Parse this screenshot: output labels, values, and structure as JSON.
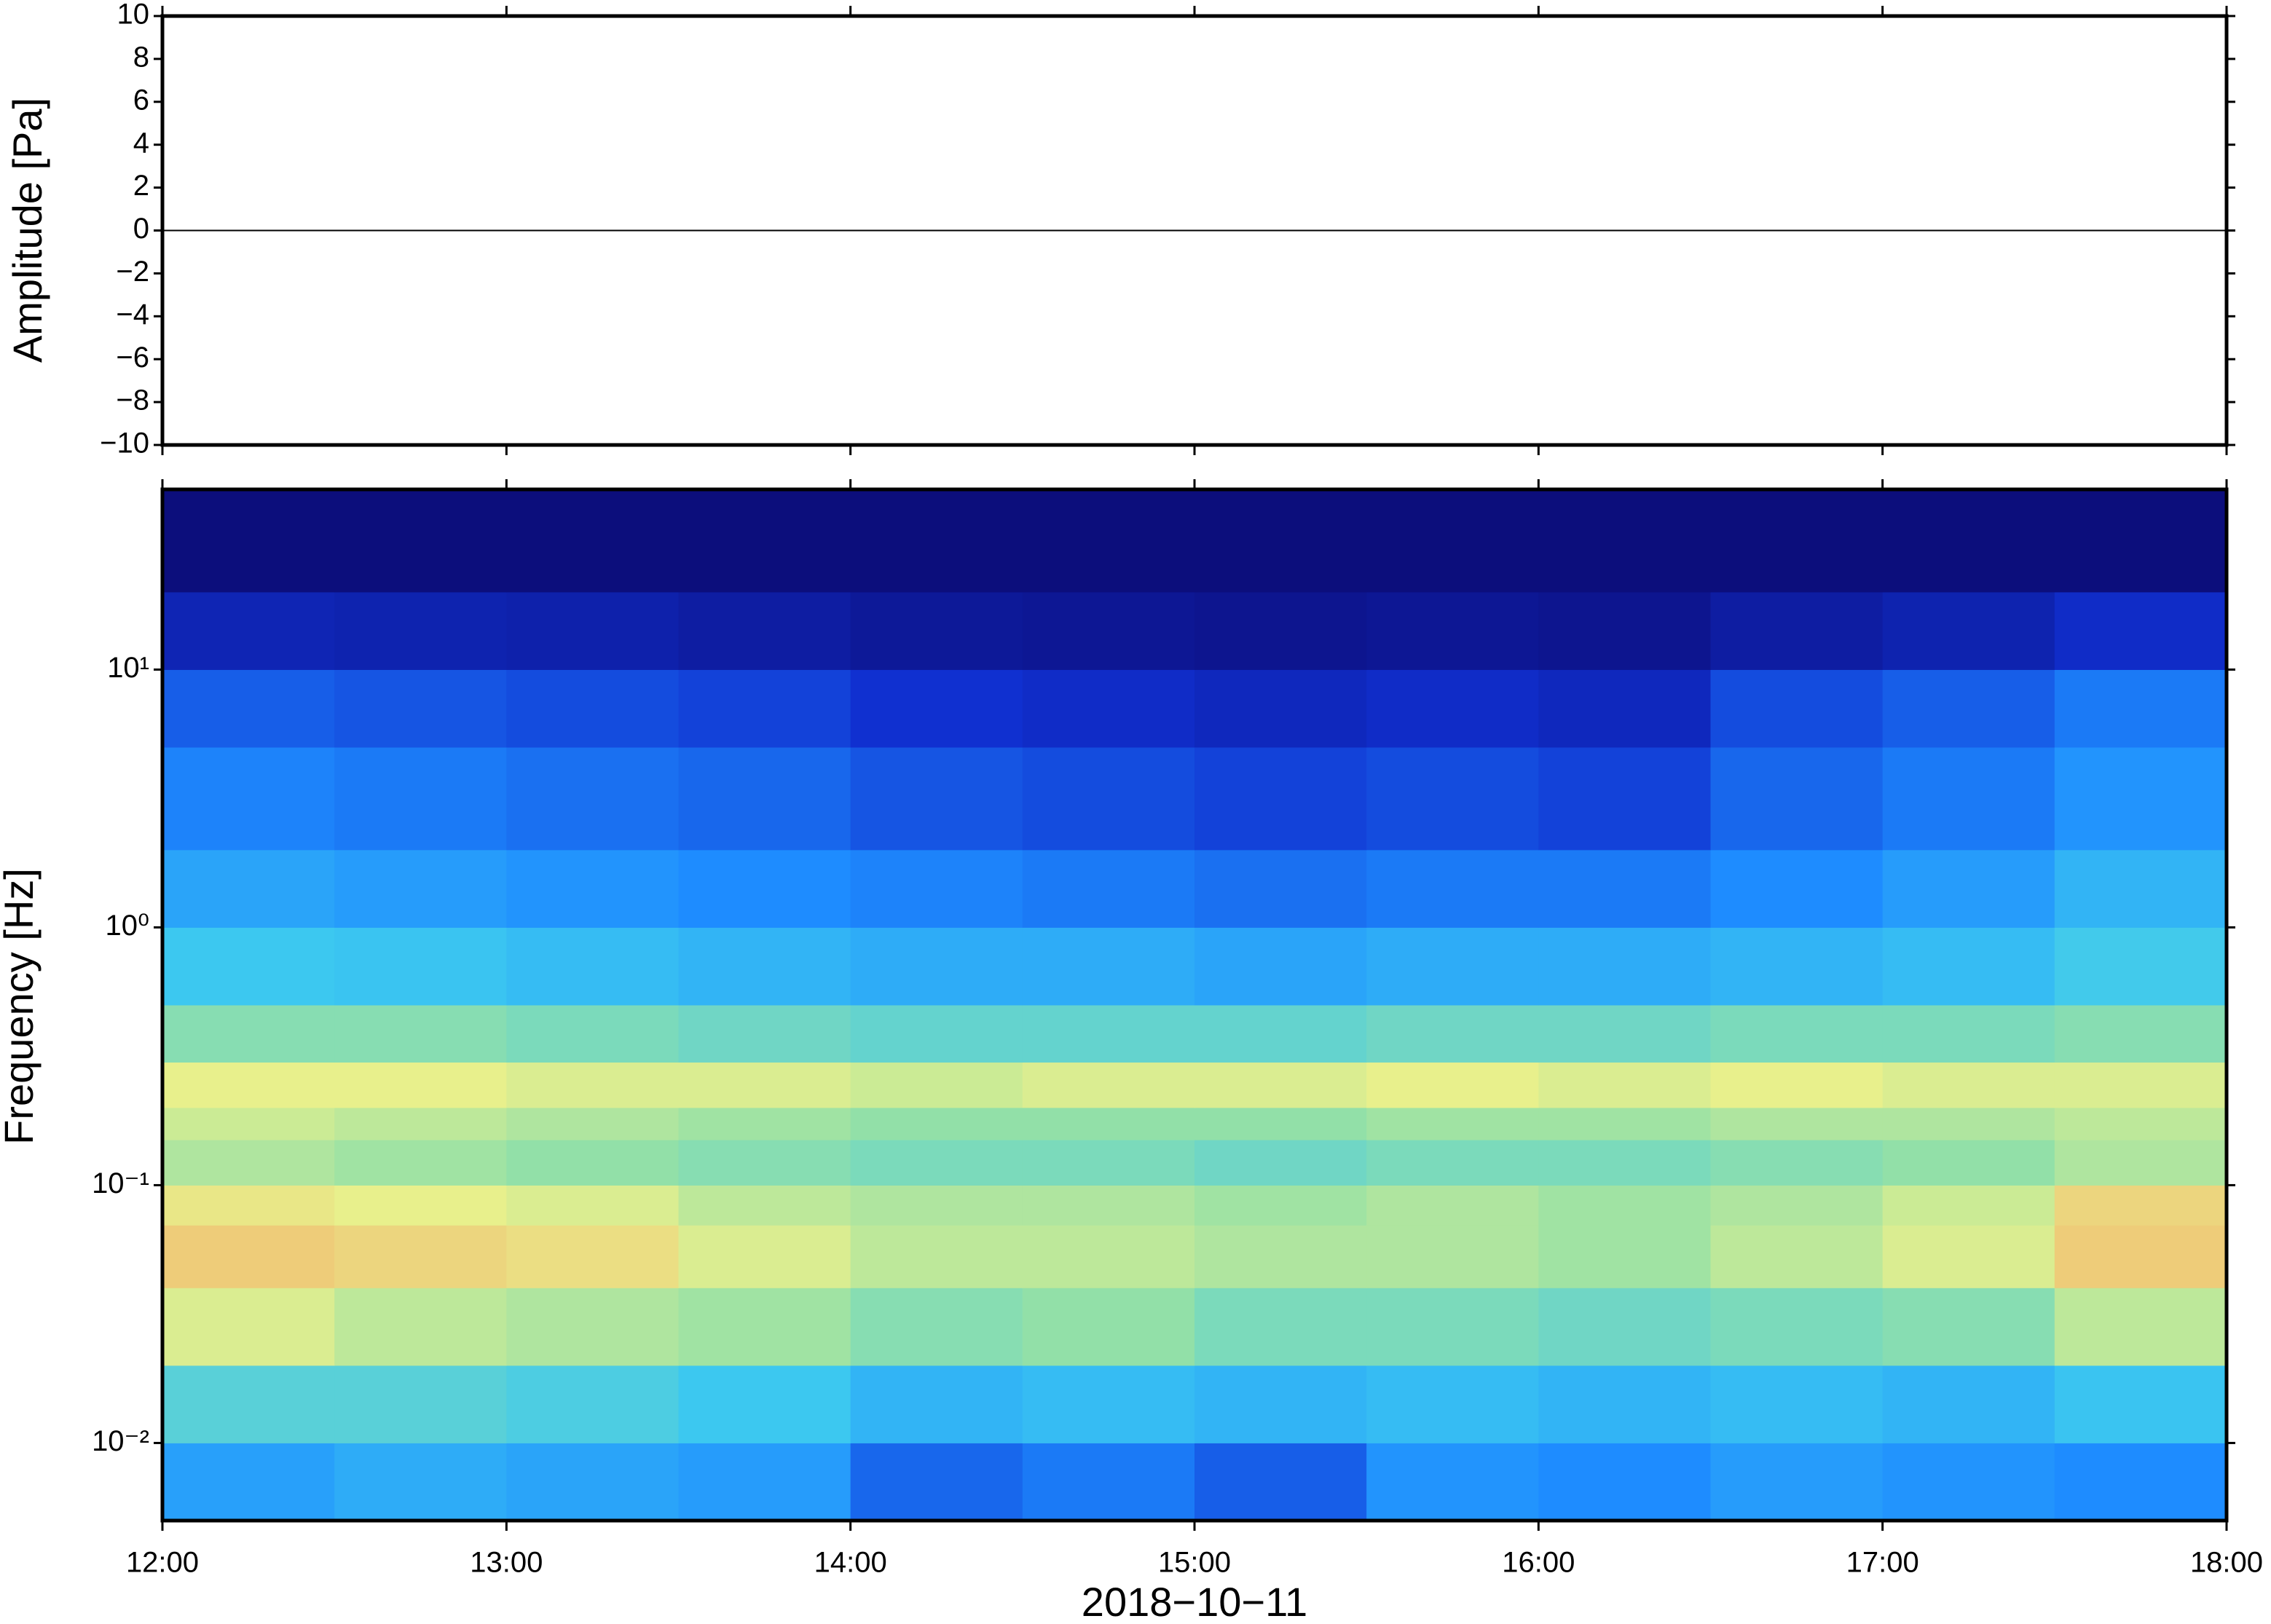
{
  "chart_data": [
    {
      "type": "line",
      "ylabel": "Amplitude [Pa]",
      "x": [
        "12:00",
        "13:00",
        "14:00",
        "15:00",
        "16:00",
        "17:00",
        "18:00"
      ],
      "series": [
        {
          "name": "Amplitude",
          "color": "#000000",
          "values": [
            0,
            0,
            0,
            0,
            0,
            0,
            0
          ]
        }
      ],
      "xlim": [
        "12:00",
        "18:00"
      ],
      "xticks": [
        "12:00",
        "13:00",
        "14:00",
        "15:00",
        "16:00",
        "17:00",
        "18:00"
      ],
      "ylim": [
        -10,
        10
      ],
      "yticks": [
        {
          "value": -10,
          "label": "−10"
        },
        {
          "value": -8,
          "label": "−8"
        },
        {
          "value": -6,
          "label": "−6"
        },
        {
          "value": -4,
          "label": "−4"
        },
        {
          "value": -2,
          "label": "−2"
        },
        0,
        2,
        4,
        6,
        8,
        10
      ]
    },
    {
      "type": "heatmap",
      "ylabel": "Frequency [Hz]",
      "xlabel": "2018−10−11",
      "log_y": true,
      "x": [
        "12:00",
        "12:30",
        "13:00",
        "13:30",
        "14:00",
        "14:30",
        "15:00",
        "15:30",
        "16:00",
        "16:30",
        "17:00",
        "17:30",
        "18:00"
      ],
      "y": [
        0.005,
        0.01,
        0.02,
        0.04,
        0.07,
        0.1,
        0.15,
        0.2,
        0.3,
        0.5,
        1,
        2,
        5,
        10,
        20,
        50
      ],
      "values": [
        [
          0.45,
          0.48,
          0.46,
          0.44,
          0.32,
          0.36,
          0.3,
          0.42,
          0.4,
          0.44,
          0.42,
          0.4
        ],
        [
          0.6,
          0.6,
          0.58,
          0.55,
          0.5,
          0.52,
          0.5,
          0.52,
          0.5,
          0.52,
          0.5,
          0.54
        ],
        [
          0.8,
          0.76,
          0.74,
          0.72,
          0.68,
          0.7,
          0.66,
          0.66,
          0.64,
          0.66,
          0.68,
          0.76
        ],
        [
          0.9,
          0.88,
          0.86,
          0.8,
          0.76,
          0.76,
          0.74,
          0.74,
          0.72,
          0.76,
          0.8,
          0.9
        ],
        [
          0.84,
          0.82,
          0.8,
          0.76,
          0.74,
          0.74,
          0.72,
          0.74,
          0.72,
          0.74,
          0.78,
          0.88
        ],
        [
          0.74,
          0.72,
          0.7,
          0.68,
          0.66,
          0.66,
          0.64,
          0.66,
          0.66,
          0.68,
          0.7,
          0.74
        ],
        [
          0.78,
          0.76,
          0.74,
          0.72,
          0.7,
          0.7,
          0.7,
          0.72,
          0.72,
          0.74,
          0.74,
          0.76
        ],
        [
          0.82,
          0.82,
          0.8,
          0.8,
          0.78,
          0.8,
          0.8,
          0.82,
          0.8,
          0.82,
          0.8,
          0.8
        ],
        [
          0.68,
          0.68,
          0.66,
          0.64,
          0.62,
          0.62,
          0.62,
          0.64,
          0.64,
          0.66,
          0.66,
          0.68
        ],
        [
          0.55,
          0.54,
          0.52,
          0.5,
          0.48,
          0.48,
          0.46,
          0.48,
          0.48,
          0.5,
          0.52,
          0.56
        ],
        [
          0.46,
          0.44,
          0.42,
          0.4,
          0.38,
          0.36,
          0.34,
          0.36,
          0.36,
          0.4,
          0.44,
          0.5
        ],
        [
          0.38,
          0.36,
          0.34,
          0.32,
          0.28,
          0.26,
          0.24,
          0.26,
          0.24,
          0.32,
          0.36,
          0.42
        ],
        [
          0.3,
          0.28,
          0.26,
          0.24,
          0.2,
          0.18,
          0.16,
          0.18,
          0.16,
          0.26,
          0.3,
          0.36
        ],
        [
          0.14,
          0.13,
          0.12,
          0.1,
          0.08,
          0.07,
          0.06,
          0.07,
          0.06,
          0.1,
          0.13,
          0.18
        ],
        [
          0.02,
          0.02,
          0.02,
          0.02,
          0.02,
          0.02,
          0.02,
          0.02,
          0.02,
          0.02,
          0.02,
          0.02
        ]
      ],
      "colormap": [
        [
          0,
          "#0b0a73"
        ],
        [
          0.2,
          "#1030d0"
        ],
        [
          0.4,
          "#1e8cff"
        ],
        [
          0.55,
          "#3cc8f0"
        ],
        [
          0.7,
          "#92e0a8"
        ],
        [
          0.82,
          "#e8f08c"
        ],
        [
          1,
          "#f5a062"
        ]
      ],
      "xlim": [
        "12:00",
        "18:00"
      ],
      "xticks": [
        "12:00",
        "13:00",
        "14:00",
        "15:00",
        "16:00",
        "17:00",
        "18:00"
      ],
      "ylim": [
        0.005,
        50
      ],
      "yticks": [
        {
          "value": 0.01,
          "label": "10⁻²"
        },
        {
          "value": 0.1,
          "label": "10⁻¹"
        },
        {
          "value": 1,
          "label": "10⁰"
        },
        {
          "value": 10,
          "label": "10¹"
        }
      ]
    }
  ]
}
